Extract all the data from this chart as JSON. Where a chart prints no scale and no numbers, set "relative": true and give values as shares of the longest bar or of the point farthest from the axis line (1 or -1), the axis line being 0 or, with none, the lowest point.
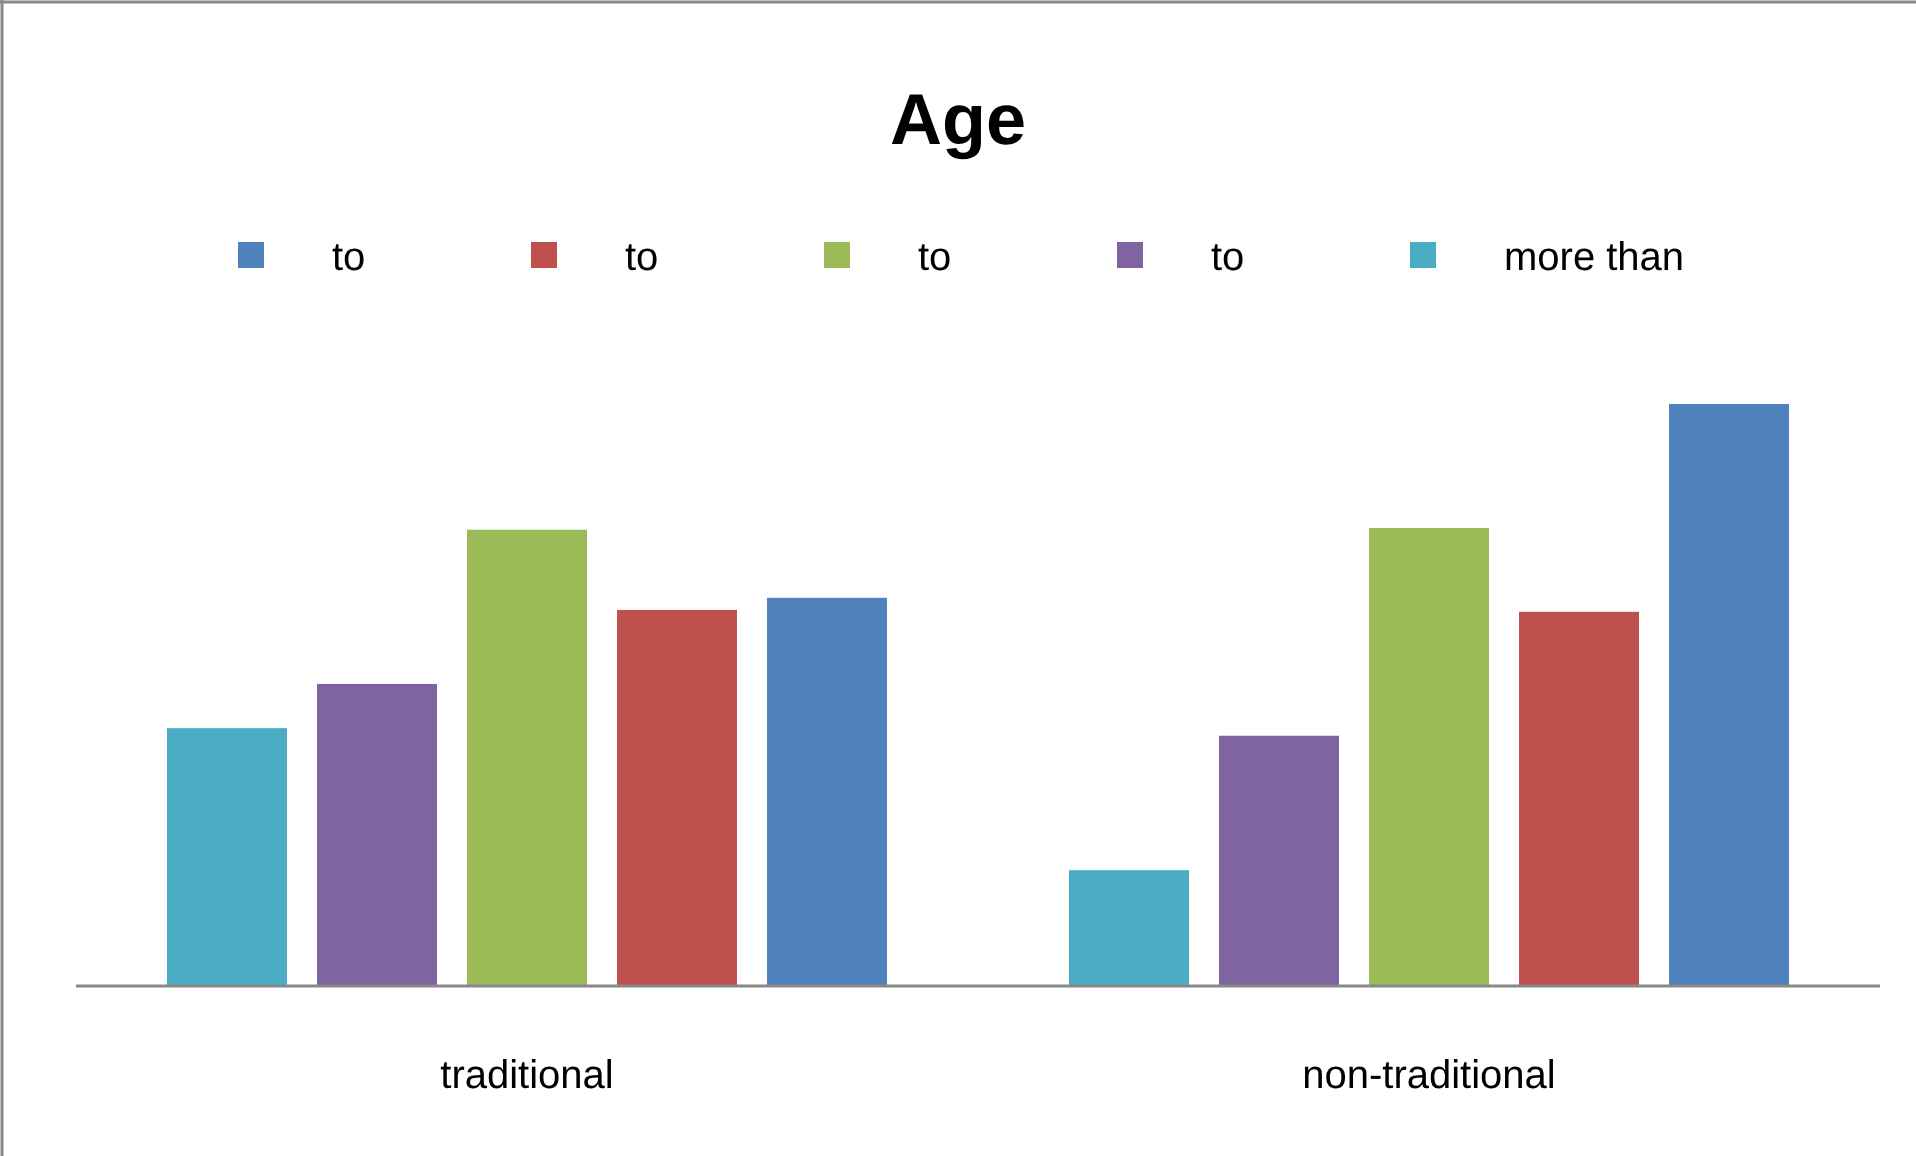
{
  "chart_data": {
    "type": "bar",
    "title": "Age",
    "relative": true,
    "legend": "top",
    "categories": [
      "traditional",
      "non-traditional"
    ],
    "series": [
      {
        "name": "to",
        "color": "#4f81bd",
        "values": [
          0.667,
          1
        ]
      },
      {
        "name": "to",
        "color": "#c0504d",
        "values": [
          0.646,
          0.643
        ]
      },
      {
        "name": "to",
        "color": "#9bbb59",
        "values": [
          0.784,
          0.787
        ]
      },
      {
        "name": "to",
        "color": "#8064a2",
        "values": [
          0.519,
          0.43
        ]
      },
      {
        "name": "more than",
        "color": "#4bacc6",
        "values": [
          0.443,
          0.199
        ]
      }
    ]
  }
}
